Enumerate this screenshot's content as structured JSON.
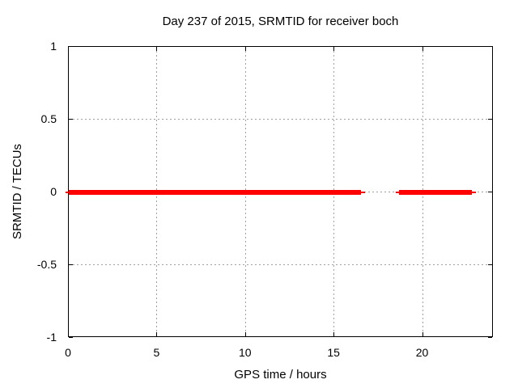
{
  "chart_data": {
    "type": "line",
    "title": "Day 237 of 2015, SRMTID for receiver boch",
    "xlabel": "GPS time / hours",
    "ylabel": "SRMTID / TECUs",
    "xlim": [
      0,
      24
    ],
    "ylim": [
      -1,
      1
    ],
    "xticks": [
      0,
      5,
      10,
      15,
      20
    ],
    "yticks": [
      1,
      0.5,
      0,
      -0.5,
      -1
    ],
    "grid": true,
    "legend": "none",
    "grid_color": "#a0a0a0",
    "border_color": "#000000",
    "series": [
      {
        "name": "SRMTID",
        "color": "#ff0000",
        "description": "SRMTID is approximately 0 TECUs for GPS time 0-16.75 h and 18.45-23.0 h; no data between 16.75 and 18.45 h",
        "segments": [
          {
            "x0": -0.2,
            "x1": 0,
            "y": 0,
            "lw": 2
          },
          {
            "x0": 0,
            "x1": 16.5,
            "y": 0,
            "lw": 6
          },
          {
            "x0": 16.5,
            "x1": 16.75,
            "y": 0,
            "lw": 2
          },
          {
            "x0": 18.45,
            "x1": 18.65,
            "y": 0,
            "lw": 2
          },
          {
            "x0": 18.65,
            "x1": 22.78,
            "y": 0,
            "lw": 6
          },
          {
            "x0": 22.78,
            "x1": 23.0,
            "y": 0,
            "lw": 2
          }
        ]
      }
    ]
  }
}
